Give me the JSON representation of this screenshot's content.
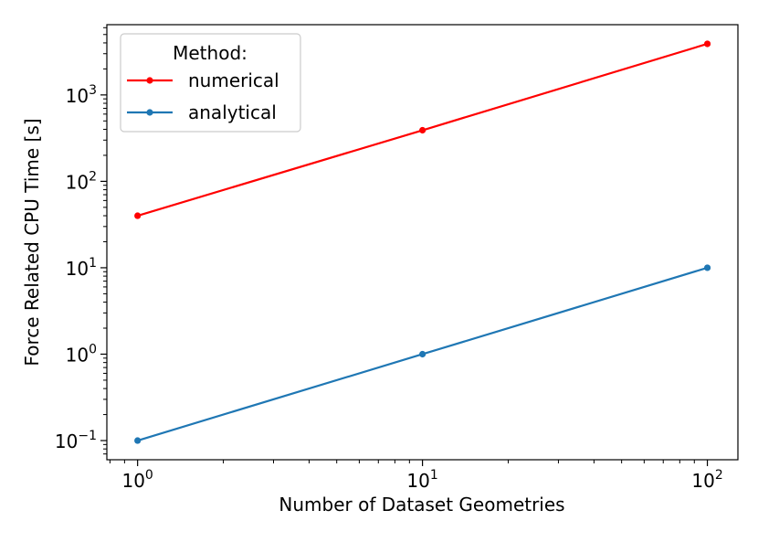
{
  "chart_data": {
    "type": "line",
    "xlabel": "Number of Dataset Geometries",
    "ylabel": "Force Related CPU Time [s]",
    "xscale": "log",
    "yscale": "log",
    "xlim": [
      0.78,
      128
    ],
    "ylim": [
      0.06,
      6500
    ],
    "x_ticks": [
      {
        "base": "10",
        "exp": "0",
        "value": 1
      },
      {
        "base": "10",
        "exp": "1",
        "value": 10
      },
      {
        "base": "10",
        "exp": "2",
        "value": 100
      }
    ],
    "y_ticks": [
      {
        "base": "10",
        "exp": "−1",
        "value": 0.1
      },
      {
        "base": "10",
        "exp": "0",
        "value": 1
      },
      {
        "base": "10",
        "exp": "1",
        "value": 10
      },
      {
        "base": "10",
        "exp": "2",
        "value": 100
      },
      {
        "base": "10",
        "exp": "3",
        "value": 1000
      }
    ],
    "grid": false,
    "legend": {
      "title": "Method:",
      "position": "top-left"
    },
    "series": [
      {
        "name": "numerical",
        "color": "#ff0000",
        "x": [
          1,
          10,
          100
        ],
        "y": [
          40,
          390,
          3900
        ]
      },
      {
        "name": "analytical",
        "color": "#1f77b4",
        "x": [
          1,
          10,
          100
        ],
        "y": [
          0.1,
          1,
          10
        ]
      }
    ]
  }
}
